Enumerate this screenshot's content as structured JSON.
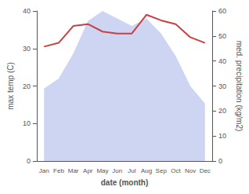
{
  "chart_data": {
    "type": "line",
    "xlabel": "date (month)",
    "ylabel": "max temp (C)",
    "y2label": "med. precipitation (kg/m2)",
    "categories": [
      "Jan",
      "Feb",
      "Mar",
      "Apr",
      "May",
      "Jun",
      "Jul",
      "Aug",
      "Sep",
      "Oct",
      "Nov",
      "Dec"
    ],
    "series": [
      {
        "type": "area",
        "axis": "y2",
        "color": "#c5cef0",
        "values": [
          29,
          33,
          43,
          56,
          60,
          57,
          54,
          57,
          51,
          42,
          30,
          23
        ]
      },
      {
        "type": "line",
        "color": "#c84040",
        "values": [
          30.5,
          31.5,
          36,
          36.5,
          34.5,
          34.0,
          34.0,
          39,
          37.5,
          36.5,
          33,
          31.5
        ]
      }
    ],
    "ylim": [
      0,
      40
    ],
    "yticks": [
      0,
      10,
      20,
      30,
      40
    ],
    "y2lim": [
      0,
      60
    ],
    "y2ticks": [
      0,
      10,
      20,
      30,
      40,
      50,
      60
    ],
    "grid": false
  }
}
